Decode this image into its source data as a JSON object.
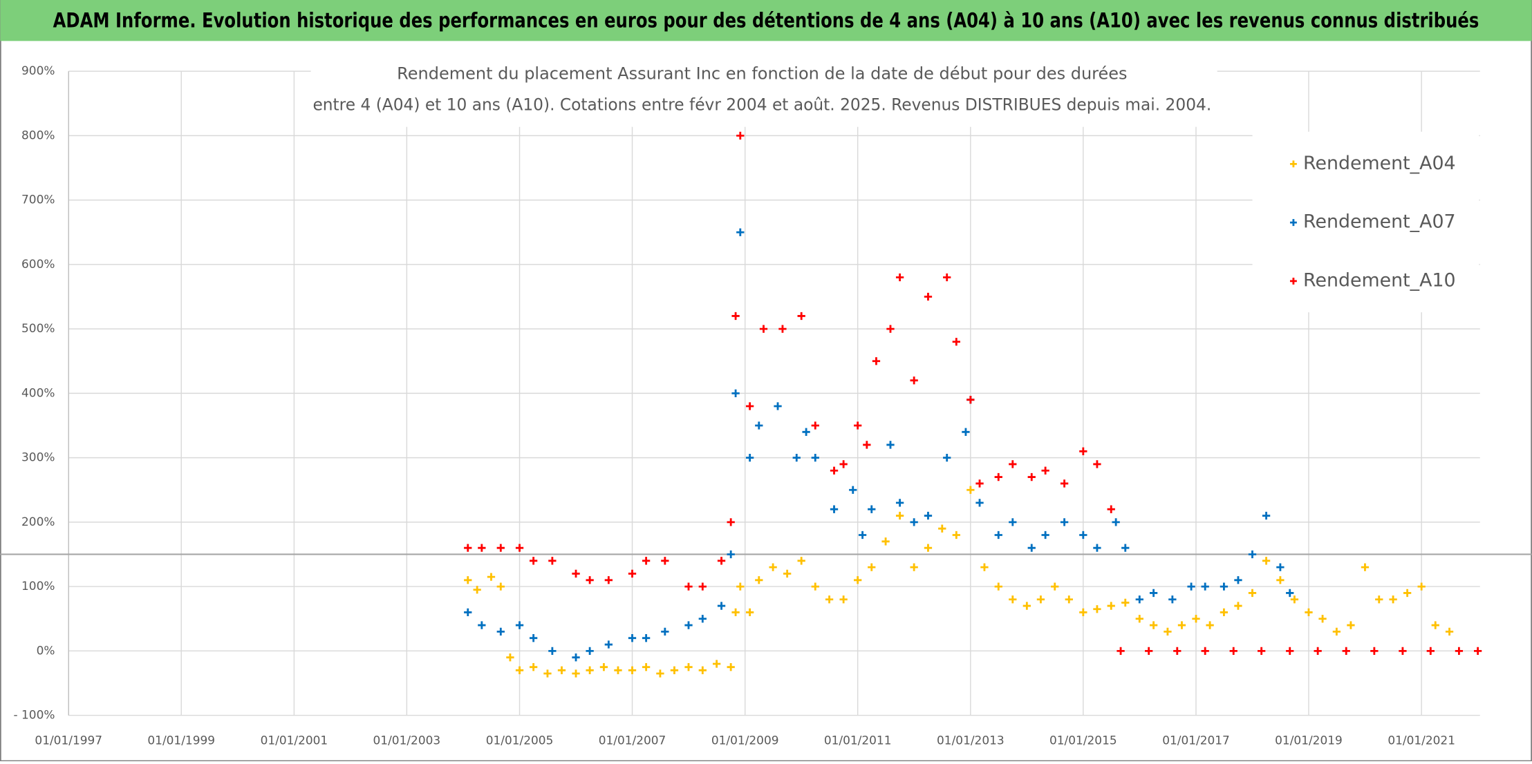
{
  "chart_data": {
    "type": "scatter",
    "header": "ADAM Informe. Evolution historique des performances en euros pour des détentions de 4 ans (A04) à 10 ans (A10) avec les revenus connus distribués",
    "title": "Rendement du placement Assurant Inc en fonction de la date de début pour des durées",
    "subtitle": "entre 4 (A04) et 10 ans (A10). Cotations entre févr 2004 et août. 2025. Revenus DISTRIBUES depuis mai. 2004.",
    "xlim": [
      "1997-01-01",
      "2022-01-15"
    ],
    "xticks": [
      {
        "value": "1997-01-01",
        "label": "01/01/1997"
      },
      {
        "value": "1999-01-01",
        "label": "01/01/1999"
      },
      {
        "value": "2001-01-01",
        "label": "01/01/2001"
      },
      {
        "value": "2003-01-01",
        "label": "01/01/2003"
      },
      {
        "value": "2005-01-01",
        "label": "01/01/2005"
      },
      {
        "value": "2007-01-01",
        "label": "01/01/2007"
      },
      {
        "value": "2009-01-01",
        "label": "01/01/2009"
      },
      {
        "value": "2011-01-01",
        "label": "01/01/2011"
      },
      {
        "value": "2013-01-01",
        "label": "01/01/2013"
      },
      {
        "value": "2015-01-01",
        "label": "01/01/2015"
      },
      {
        "value": "2017-01-01",
        "label": "01/01/2017"
      },
      {
        "value": "2019-01-01",
        "label": "01/01/2019"
      },
      {
        "value": "2021-01-01",
        "label": "01/01/2021"
      }
    ],
    "ylim": [
      -100,
      900
    ],
    "yticks": [
      {
        "value": -100,
        "label": "- 100%"
      },
      {
        "value": 0,
        "label": "0%"
      },
      {
        "value": 100,
        "label": "100%"
      },
      {
        "value": 200,
        "label": "200%"
      },
      {
        "value": 300,
        "label": "300%"
      },
      {
        "value": 400,
        "label": "400%"
      },
      {
        "value": 500,
        "label": "500%"
      },
      {
        "value": 600,
        "label": "600%"
      },
      {
        "value": 700,
        "label": "700%"
      },
      {
        "value": 800,
        "label": "800%"
      },
      {
        "value": 900,
        "label": "900%"
      }
    ],
    "hline": 150,
    "grid": true,
    "legend": "upper right",
    "series": [
      {
        "name": "Rendement_A04",
        "color": "#ffc000",
        "x": [
          "2004-02-01",
          "2004-04-01",
          "2004-07-01",
          "2004-09-01",
          "2004-11-01",
          "2005-01-01",
          "2005-04-01",
          "2005-07-01",
          "2005-10-01",
          "2006-01-01",
          "2006-04-01",
          "2006-07-01",
          "2006-10-01",
          "2007-01-01",
          "2007-04-01",
          "2007-07-01",
          "2007-10-01",
          "2008-01-01",
          "2008-04-01",
          "2008-07-01",
          "2008-10-01",
          "2008-11-01",
          "2008-12-01",
          "2009-02-01",
          "2009-04-01",
          "2009-07-01",
          "2009-10-01",
          "2010-01-01",
          "2010-04-01",
          "2010-07-01",
          "2010-10-01",
          "2011-01-01",
          "2011-04-01",
          "2011-07-01",
          "2011-10-01",
          "2012-01-01",
          "2012-04-01",
          "2012-07-01",
          "2012-10-01",
          "2013-01-01",
          "2013-04-01",
          "2013-07-01",
          "2013-10-01",
          "2014-01-01",
          "2014-04-01",
          "2014-07-01",
          "2014-10-01",
          "2015-01-01",
          "2015-04-01",
          "2015-07-01",
          "2015-10-01",
          "2016-01-01",
          "2016-04-01",
          "2016-07-01",
          "2016-10-01",
          "2017-01-01",
          "2017-04-01",
          "2017-07-01",
          "2017-10-01",
          "2018-01-01",
          "2018-04-01",
          "2018-07-01",
          "2018-10-01",
          "2019-01-01",
          "2019-04-01",
          "2019-07-01",
          "2019-10-01",
          "2020-01-01",
          "2020-04-01",
          "2020-07-01",
          "2020-10-01",
          "2021-01-01",
          "2021-04-01",
          "2021-07-01"
        ],
        "values": [
          110,
          95,
          115,
          100,
          -10,
          -30,
          -25,
          -35,
          -30,
          -35,
          -30,
          -25,
          -30,
          -30,
          -25,
          -35,
          -30,
          -25,
          -30,
          -20,
          -25,
          60,
          100,
          60,
          110,
          130,
          120,
          140,
          100,
          80,
          80,
          110,
          130,
          170,
          210,
          130,
          160,
          190,
          180,
          250,
          130,
          100,
          80,
          70,
          80,
          100,
          80,
          60,
          65,
          70,
          75,
          50,
          40,
          30,
          40,
          50,
          40,
          60,
          70,
          90,
          140,
          110,
          80,
          60,
          50,
          30,
          40,
          130,
          80,
          80,
          90,
          100,
          40,
          30
        ]
      },
      {
        "name": "Rendement_A07",
        "color": "#0070c0",
        "x": [
          "2004-02-01",
          "2004-05-01",
          "2004-09-01",
          "2005-01-01",
          "2005-04-01",
          "2005-08-01",
          "2006-01-01",
          "2006-04-01",
          "2006-08-01",
          "2007-01-01",
          "2007-04-01",
          "2007-08-01",
          "2008-01-01",
          "2008-04-01",
          "2008-08-01",
          "2008-10-01",
          "2008-11-01",
          "2008-12-01",
          "2009-02-01",
          "2009-04-01",
          "2009-08-01",
          "2009-12-01",
          "2010-02-01",
          "2010-04-01",
          "2010-08-01",
          "2010-12-01",
          "2011-02-01",
          "2011-04-01",
          "2011-08-01",
          "2011-10-01",
          "2012-01-01",
          "2012-04-01",
          "2012-08-01",
          "2012-12-01",
          "2013-01-01",
          "2013-03-01",
          "2013-07-01",
          "2013-10-01",
          "2014-02-01",
          "2014-05-01",
          "2014-09-01",
          "2015-01-01",
          "2015-04-01",
          "2015-08-01",
          "2015-10-01",
          "2016-01-01",
          "2016-04-01",
          "2016-08-01",
          "2016-12-01",
          "2017-03-01",
          "2017-07-01",
          "2017-10-01",
          "2018-01-01",
          "2018-04-01",
          "2018-07-01",
          "2018-09-01"
        ],
        "values": [
          60,
          40,
          30,
          40,
          20,
          0,
          -10,
          0,
          10,
          20,
          20,
          30,
          40,
          50,
          70,
          150,
          400,
          650,
          300,
          350,
          380,
          300,
          340,
          300,
          220,
          250,
          180,
          220,
          320,
          230,
          200,
          210,
          300,
          340,
          390,
          230,
          180,
          200,
          160,
          180,
          200,
          180,
          160,
          200,
          160,
          80,
          90,
          80,
          100,
          100,
          100,
          110,
          150,
          210,
          130,
          90
        ]
      },
      {
        "name": "Rendement_A10",
        "color": "#ff0000",
        "x": [
          "2004-02-01",
          "2004-05-01",
          "2004-09-01",
          "2005-01-01",
          "2005-04-01",
          "2005-08-01",
          "2006-01-01",
          "2006-04-01",
          "2006-08-01",
          "2007-01-01",
          "2007-04-01",
          "2007-08-01",
          "2008-01-01",
          "2008-04-01",
          "2008-08-01",
          "2008-10-01",
          "2008-11-01",
          "2008-12-01",
          "2009-02-01",
          "2009-05-01",
          "2009-09-01",
          "2010-01-01",
          "2010-04-01",
          "2010-08-01",
          "2010-10-01",
          "2011-01-01",
          "2011-03-01",
          "2011-05-01",
          "2011-08-01",
          "2011-10-01",
          "2012-01-01",
          "2012-04-01",
          "2012-08-01",
          "2012-10-01",
          "2013-01-01",
          "2013-03-01",
          "2013-07-01",
          "2013-10-01",
          "2014-02-01",
          "2014-05-01",
          "2014-09-01",
          "2015-01-01",
          "2015-04-01",
          "2015-07-01",
          "2015-09-01",
          "2016-03-01",
          "2016-09-01",
          "2017-03-01",
          "2017-09-01",
          "2018-03-01",
          "2018-09-01",
          "2019-03-01",
          "2019-09-01",
          "2020-03-01",
          "2020-09-01",
          "2021-03-01",
          "2021-09-01",
          "2022-01-01"
        ],
        "values": [
          160,
          160,
          160,
          160,
          140,
          140,
          120,
          110,
          110,
          120,
          140,
          140,
          100,
          100,
          140,
          200,
          520,
          800,
          380,
          500,
          500,
          520,
          350,
          280,
          290,
          350,
          320,
          450,
          500,
          580,
          420,
          550,
          580,
          480,
          390,
          260,
          270,
          290,
          270,
          280,
          260,
          310,
          290,
          220,
          0,
          0,
          0,
          0,
          0,
          0,
          0,
          0,
          0,
          0,
          0,
          0,
          0,
          0
        ]
      }
    ]
  }
}
